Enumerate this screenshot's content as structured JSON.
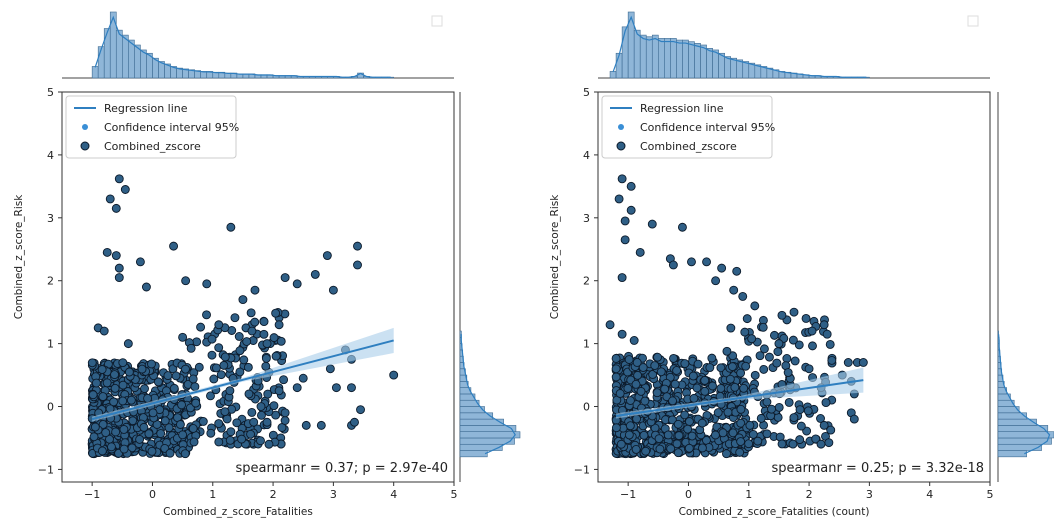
{
  "chart_data": [
    {
      "type": "scatter",
      "title": "",
      "xlabel": "Combined_z_score_Fatalities",
      "ylabel": "Combined_z_score_Risk",
      "xlim": [
        -1.5,
        5
      ],
      "ylim": [
        -1.2,
        5
      ],
      "x_ticks": [
        -1,
        0,
        1,
        2,
        3,
        4,
        5
      ],
      "y_ticks": [
        -1,
        0,
        1,
        2,
        3,
        4,
        5
      ],
      "x_tick_labels": [
        "−1",
        "0",
        "1",
        "2",
        "3",
        "4",
        "5"
      ],
      "y_tick_labels": [
        "−1",
        "0",
        "1",
        "2",
        "3",
        "4",
        "5"
      ],
      "grid": false,
      "legend": {
        "location": "top-left",
        "entries": [
          "Regression line",
          "Confidence interval 95%",
          "Combined_zscore"
        ]
      },
      "annotation": "spearmanr = 0.37; p = 2.97e-40",
      "regression": {
        "x": [
          -1,
          4
        ],
        "y": [
          -0.2,
          1.05
        ]
      },
      "colors": {
        "line": "#2f7fc0",
        "band": "#a9cdea",
        "point_fill": "#2f5f86",
        "point_edge": "#0c1a2a",
        "hist": "#8fb6d8"
      },
      "marginal_x": {
        "bins_start": -1.0,
        "bin_width": 0.1,
        "counts": [
          14,
          38,
          60,
          80,
          58,
          52,
          46,
          40,
          34,
          30,
          24,
          20,
          17,
          14,
          12,
          11,
          10,
          9,
          8,
          8,
          7,
          7,
          6,
          6,
          5,
          5,
          5,
          4,
          4,
          4,
          3,
          3,
          3,
          3,
          2,
          2,
          2,
          2,
          2,
          2,
          2,
          1,
          1,
          2,
          6,
          2,
          1,
          1,
          1,
          1
        ]
      },
      "marginal_y": {
        "bins_start": -0.8,
        "bin_width": 0.1,
        "counts": [
          40,
          62,
          80,
          88,
          82,
          64,
          48,
          36,
          28,
          22,
          16,
          12,
          10,
          8,
          6,
          5,
          4,
          3,
          2,
          2
        ]
      },
      "points": [
        [
          -0.55,
          3.62
        ],
        [
          -0.45,
          3.45
        ],
        [
          -0.7,
          3.3
        ],
        [
          -0.6,
          3.15
        ],
        [
          -0.75,
          2.45
        ],
        [
          -0.6,
          2.4
        ],
        [
          -0.55,
          2.2
        ],
        [
          -0.55,
          2.05
        ],
        [
          -0.2,
          2.3
        ],
        [
          0.35,
          2.55
        ],
        [
          1.3,
          2.85
        ],
        [
          2.9,
          2.4
        ],
        [
          3.4,
          2.55
        ],
        [
          3.4,
          2.25
        ],
        [
          -0.1,
          1.9
        ],
        [
          0.55,
          2.0
        ],
        [
          0.9,
          1.95
        ],
        [
          1.7,
          1.85
        ],
        [
          2.2,
          2.05
        ],
        [
          2.7,
          2.1
        ],
        [
          3.0,
          1.85
        ],
        [
          1.5,
          1.7
        ],
        [
          2.4,
          1.95
        ],
        [
          1.1,
          1.3
        ],
        [
          1.55,
          1.25
        ],
        [
          2.1,
          1.3
        ],
        [
          1.85,
          1.35
        ],
        [
          1.65,
          1.2
        ],
        [
          1.9,
          1.0
        ],
        [
          2.05,
          0.8
        ],
        [
          -0.9,
          1.25
        ],
        [
          -0.8,
          1.2
        ],
        [
          -0.4,
          1.0
        ],
        [
          0.5,
          1.1
        ],
        [
          3.2,
          0.9
        ],
        [
          3.3,
          0.75
        ],
        [
          4.0,
          0.5
        ],
        [
          3.3,
          0.3
        ],
        [
          2.2,
          -0.1
        ],
        [
          1.9,
          -0.25
        ],
        [
          2.55,
          -0.3
        ],
        [
          2.8,
          -0.3
        ],
        [
          3.3,
          -0.3
        ],
        [
          3.45,
          -0.05
        ],
        [
          3.35,
          -0.25
        ],
        [
          3.05,
          0.3
        ],
        [
          1.8,
          0.0
        ],
        [
          1.6,
          0.2
        ],
        [
          2.1,
          0.25
        ],
        [
          2.5,
          0.45
        ],
        [
          2.95,
          0.6
        ],
        [
          2.4,
          0.3
        ],
        [
          1.3,
          -0.4
        ],
        [
          0.5,
          -0.45
        ],
        [
          1.45,
          0.55
        ],
        [
          -0.35,
          0.1
        ]
      ],
      "cluster": {
        "x_range": [
          -1.0,
          0.6
        ],
        "y_range": [
          -0.75,
          0.7
        ],
        "count": 650,
        "tail_x_range": [
          0.6,
          2.2
        ],
        "tail_y_range": [
          -0.6,
          1.5
        ],
        "tail_count": 180
      }
    },
    {
      "type": "scatter",
      "title": "",
      "xlabel": "Combined_z_score_Fatalities (count)",
      "ylabel": "Combined_z_score_Risk",
      "xlim": [
        -1.5,
        5
      ],
      "ylim": [
        -1.2,
        5
      ],
      "x_ticks": [
        -1,
        0,
        1,
        2,
        3,
        4,
        5
      ],
      "y_ticks": [
        -1,
        0,
        1,
        2,
        3,
        4,
        5
      ],
      "x_tick_labels": [
        "−1",
        "0",
        "1",
        "2",
        "3",
        "4",
        "5"
      ],
      "y_tick_labels": [
        "−1",
        "0",
        "1",
        "2",
        "3",
        "4",
        "5"
      ],
      "grid": false,
      "legend": {
        "location": "top-left",
        "entries": [
          "Regression line",
          "Confidence interval 95%",
          "Combined_zscore"
        ]
      },
      "annotation": "spearmanr = 0.25; p = 3.32e-18",
      "regression": {
        "x": [
          -1.2,
          2.9
        ],
        "y": [
          -0.15,
          0.42
        ]
      },
      "colors": {
        "line": "#2f7fc0",
        "band": "#a9cdea",
        "point_fill": "#2f5f86",
        "point_edge": "#0c1a2a",
        "hist": "#8fb6d8"
      },
      "marginal_x": {
        "bins_start": -1.3,
        "bin_width": 0.1,
        "counts": [
          8,
          30,
          62,
          80,
          58,
          52,
          50,
          52,
          48,
          48,
          48,
          46,
          46,
          44,
          42,
          40,
          36,
          34,
          30,
          26,
          24,
          22,
          20,
          18,
          16,
          14,
          12,
          10,
          8,
          7,
          6,
          5,
          4,
          3,
          3,
          2,
          2,
          2,
          1,
          1,
          1,
          1,
          1
        ]
      },
      "marginal_y": {
        "bins_start": -0.8,
        "bin_width": 0.1,
        "counts": [
          46,
          70,
          86,
          90,
          80,
          62,
          46,
          34,
          26,
          20,
          14,
          10,
          8,
          6,
          5,
          4,
          3,
          2,
          2,
          1
        ]
      },
      "points": [
        [
          -1.1,
          3.62
        ],
        [
          -0.95,
          3.5
        ],
        [
          -1.15,
          3.3
        ],
        [
          -0.95,
          3.12
        ],
        [
          -1.05,
          2.95
        ],
        [
          -1.05,
          2.65
        ],
        [
          -0.6,
          2.9
        ],
        [
          -0.8,
          2.45
        ],
        [
          -1.1,
          2.05
        ],
        [
          -0.3,
          2.35
        ],
        [
          -0.25,
          2.25
        ],
        [
          -0.1,
          2.85
        ],
        [
          0.05,
          2.3
        ],
        [
          0.3,
          2.3
        ],
        [
          0.55,
          2.2
        ],
        [
          0.8,
          2.15
        ],
        [
          0.45,
          2.0
        ],
        [
          0.75,
          1.85
        ],
        [
          0.9,
          1.75
        ],
        [
          1.1,
          1.6
        ],
        [
          1.55,
          1.45
        ],
        [
          1.75,
          1.5
        ],
        [
          1.95,
          1.4
        ],
        [
          2.05,
          1.2
        ],
        [
          2.3,
          1.15
        ],
        [
          2.25,
          1.3
        ],
        [
          1.5,
          1.0
        ],
        [
          -1.3,
          1.3
        ],
        [
          -1.1,
          1.15
        ],
        [
          -0.9,
          1.05
        ],
        [
          2.65,
          0.7
        ],
        [
          2.8,
          0.7
        ],
        [
          2.9,
          0.7
        ],
        [
          2.55,
          0.5
        ],
        [
          2.7,
          0.4
        ],
        [
          2.2,
          0.3
        ],
        [
          1.55,
          0.35
        ],
        [
          2.75,
          0.2
        ],
        [
          2.7,
          -0.1
        ],
        [
          2.75,
          -0.2
        ],
        [
          2.25,
          -0.3
        ],
        [
          1.85,
          -0.05
        ],
        [
          1.15,
          -0.55
        ],
        [
          2.0,
          0.6
        ],
        [
          -0.85,
          0.7
        ],
        [
          -1.2,
          0.6
        ]
      ],
      "cluster": {
        "x_range": [
          -1.2,
          1.0
        ],
        "y_range": [
          -0.75,
          0.8
        ],
        "count": 750,
        "tail_x_range": [
          0.6,
          2.4
        ],
        "tail_y_range": [
          -0.6,
          1.4
        ],
        "tail_count": 150
      }
    }
  ]
}
